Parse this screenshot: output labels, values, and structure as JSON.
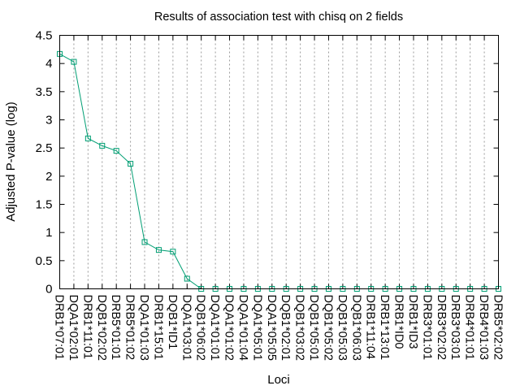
{
  "chart_data": {
    "type": "line",
    "title": "Results of association test with chisq on 2 fields",
    "xlabel": "Loci",
    "ylabel": "Adjusted P-value (log)",
    "ylim": [
      0,
      4.5
    ],
    "yticks": [
      "0",
      "0.5",
      "1",
      "1.5",
      "2",
      "2.5",
      "3",
      "3.5",
      "4",
      "4.5"
    ],
    "grid": "vertical dashed lines at each category",
    "legend": "none",
    "color": "#009e73",
    "categories": [
      "DRB1*07:01",
      "DQA1*02:01",
      "DRB1*11:01",
      "DQB1*02:02",
      "DRB5*01:01",
      "DRB5*01:02",
      "DQA1*01:03",
      "DRB1*15:01",
      "DQB1*ID1",
      "DQA1*03:01",
      "DQB1*06:02",
      "DQA1*01:01",
      "DQA1*01:02",
      "DQA1*01:04",
      "DQA1*05:01",
      "DQA1*05:05",
      "DQB1*02:01",
      "DQB1*03:02",
      "DQB1*05:01",
      "DQB1*05:02",
      "DQB1*05:03",
      "DQB1*06:03",
      "DRB1*11:04",
      "DRB1*13:01",
      "DRB1*ID0",
      "DRB1*ID3",
      "DRB3*01:01",
      "DRB3*02:02",
      "DRB3*03:01",
      "DRB4*01:01",
      "DRB4*01:03",
      "DRB5*02:02"
    ],
    "values": [
      4.17,
      4.03,
      2.67,
      2.54,
      2.45,
      2.22,
      0.83,
      0.69,
      0.66,
      0.18,
      0,
      0,
      0,
      0,
      0,
      0,
      0,
      0,
      0,
      0,
      0,
      0,
      0,
      0,
      0,
      0,
      0,
      0,
      0,
      0,
      0,
      0
    ]
  }
}
